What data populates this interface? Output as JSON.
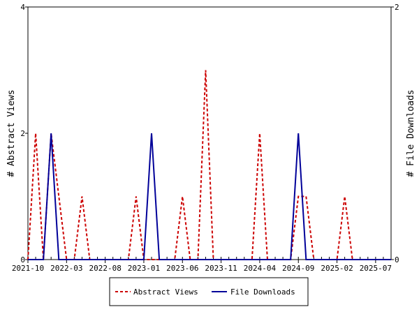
{
  "chart_data": {
    "type": "line",
    "x_ticks": [
      "2021-10",
      "2022-03",
      "2022-08",
      "2023-01",
      "2023-06",
      "2023-11",
      "2024-04",
      "2024-09",
      "2025-02",
      "2025-07"
    ],
    "y_left": {
      "label": "# Abstract Views",
      "ticks": [
        "0",
        "2",
        "4"
      ],
      "range": [
        0,
        4
      ]
    },
    "y_right": {
      "label": "# File Downloads",
      "ticks": [
        "0",
        "2"
      ],
      "range": [
        0,
        2
      ]
    },
    "x_range_months": [
      0,
      47
    ],
    "grid": false,
    "legend_position": "bottom",
    "series": [
      {
        "name": "Abstract Views",
        "axis": "left",
        "color": "#cc0000",
        "style": "dashed",
        "values": [
          0,
          2,
          0,
          2,
          1,
          0,
          0,
          1,
          0,
          0,
          0,
          0,
          0,
          0,
          1,
          0,
          0,
          0,
          0,
          0,
          1,
          0,
          0,
          3,
          0,
          0,
          0,
          0,
          0,
          0,
          2,
          0,
          0,
          0,
          0,
          1,
          1,
          0,
          0,
          0,
          0,
          1,
          0,
          0,
          0,
          0,
          0,
          0
        ]
      },
      {
        "name": "File Downloads",
        "axis": "right",
        "color": "#000099",
        "style": "solid",
        "values": [
          0,
          0,
          0,
          1,
          0,
          0,
          0,
          0,
          0,
          0,
          0,
          0,
          0,
          0,
          0,
          0,
          1,
          0,
          0,
          0,
          0,
          0,
          0,
          0,
          0,
          0,
          0,
          0,
          0,
          0,
          0,
          0,
          0,
          0,
          0,
          1,
          0,
          0,
          0,
          0,
          0,
          0,
          0,
          0,
          0,
          0,
          0,
          0
        ]
      }
    ]
  }
}
